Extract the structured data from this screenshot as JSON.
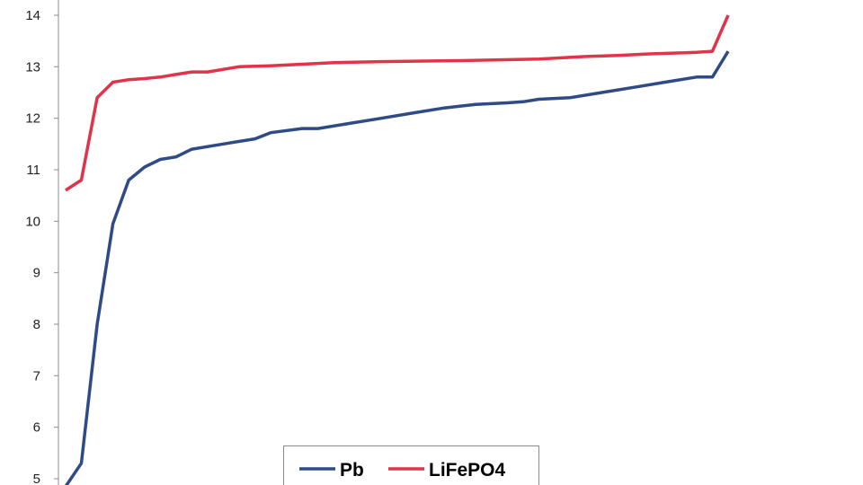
{
  "chart_data": {
    "type": "line",
    "title": "",
    "xlabel": "",
    "ylabel": "",
    "ylim": [
      5,
      14
    ],
    "yticks": [
      5,
      6,
      7,
      8,
      9,
      10,
      11,
      12,
      13,
      14
    ],
    "grid": false,
    "legend": {
      "position": "bottom-center"
    },
    "series": [
      {
        "name": "Pb",
        "color": "#2E4A87",
        "points": [
          [
            0,
            4.85
          ],
          [
            2,
            5.3
          ],
          [
            4,
            8.0
          ],
          [
            6,
            9.95
          ],
          [
            8,
            10.8
          ],
          [
            10,
            11.05
          ],
          [
            12,
            11.2
          ],
          [
            14,
            11.25
          ],
          [
            16,
            11.4
          ],
          [
            20,
            11.5
          ],
          [
            24,
            11.6
          ],
          [
            26,
            11.72
          ],
          [
            30,
            11.8
          ],
          [
            32,
            11.8
          ],
          [
            36,
            11.9
          ],
          [
            40,
            12.0
          ],
          [
            44,
            12.1
          ],
          [
            48,
            12.2
          ],
          [
            52,
            12.27
          ],
          [
            56,
            12.3
          ],
          [
            58,
            12.32
          ],
          [
            60,
            12.37
          ],
          [
            64,
            12.4
          ],
          [
            68,
            12.5
          ],
          [
            72,
            12.6
          ],
          [
            76,
            12.7
          ],
          [
            80,
            12.8
          ],
          [
            82,
            12.8
          ],
          [
            84,
            13.3
          ]
        ]
      },
      {
        "name": "LiFePO4",
        "color": "#E0344A",
        "points": [
          [
            0,
            10.6
          ],
          [
            2,
            10.8
          ],
          [
            4,
            12.4
          ],
          [
            6,
            12.7
          ],
          [
            8,
            12.75
          ],
          [
            10,
            12.77
          ],
          [
            12,
            12.8
          ],
          [
            14,
            12.85
          ],
          [
            16,
            12.9
          ],
          [
            18,
            12.9
          ],
          [
            22,
            13.0
          ],
          [
            26,
            13.02
          ],
          [
            30,
            13.05
          ],
          [
            34,
            13.08
          ],
          [
            40,
            13.1
          ],
          [
            50,
            13.12
          ],
          [
            60,
            13.15
          ],
          [
            66,
            13.2
          ],
          [
            70,
            13.22
          ],
          [
            74,
            13.25
          ],
          [
            78,
            13.27
          ],
          [
            80,
            13.28
          ],
          [
            82,
            13.3
          ],
          [
            84,
            14.0
          ]
        ]
      }
    ]
  }
}
